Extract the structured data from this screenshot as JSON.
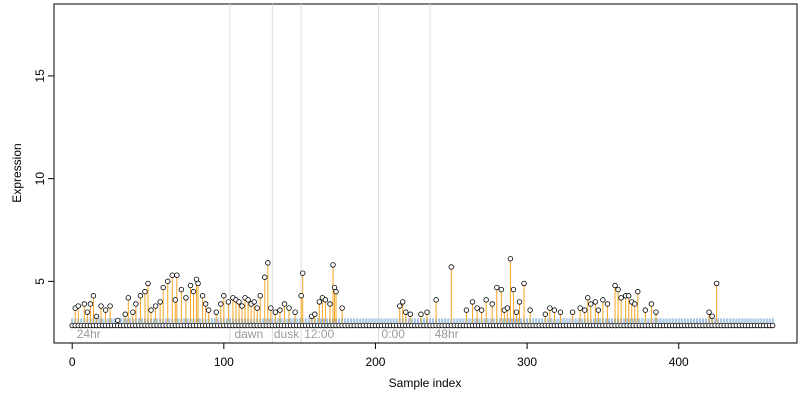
{
  "chart_data": {
    "type": "scatter",
    "title": "",
    "xlabel": "Sample index",
    "ylabel": "Expression",
    "xlim": [
      -12,
      478
    ],
    "ylim": [
      2.0,
      18.5
    ],
    "x_ticks": [
      0,
      100,
      200,
      300,
      400
    ],
    "y_ticks": [
      5,
      10,
      15
    ],
    "baseline": 3.0,
    "grid": false,
    "legend": "none",
    "colors": {
      "stem": "#f5a623",
      "baseline_bar": "#b9d3ee",
      "baseline_bar_edge": "#6f9fd0",
      "point_fill": "#ffffff",
      "point_edge": "#000000",
      "phase_line": "#dddddd",
      "phase_text": "#9a9a9a"
    },
    "phase_boundaries": [
      104,
      132,
      151,
      202,
      236
    ],
    "phase_labels": [
      {
        "x": 3,
        "label": "24hr"
      },
      {
        "x": 107,
        "label": "dawn"
      },
      {
        "x": 133,
        "label": "dusk"
      },
      {
        "x": 153,
        "label": "12:00"
      },
      {
        "x": 204,
        "label": "0:00"
      },
      {
        "x": 239,
        "label": "48hr"
      }
    ],
    "series": [
      {
        "values": [
          {
            "x": 2,
            "y": 3.7
          },
          {
            "x": 4,
            "y": 3.8
          },
          {
            "x": 8,
            "y": 3.9
          },
          {
            "x": 10,
            "y": 3.5
          },
          {
            "x": 12,
            "y": 3.9
          },
          {
            "x": 14,
            "y": 4.3
          },
          {
            "x": 16,
            "y": 3.3
          },
          {
            "x": 19,
            "y": 3.8
          },
          {
            "x": 22,
            "y": 3.6
          },
          {
            "x": 25,
            "y": 3.8
          },
          {
            "x": 30,
            "y": 3.1
          },
          {
            "x": 35,
            "y": 3.4
          },
          {
            "x": 37,
            "y": 4.2
          },
          {
            "x": 40,
            "y": 3.5
          },
          {
            "x": 42,
            "y": 3.9
          },
          {
            "x": 45,
            "y": 4.3
          },
          {
            "x": 48,
            "y": 4.5
          },
          {
            "x": 50,
            "y": 4.9
          },
          {
            "x": 52,
            "y": 3.6
          },
          {
            "x": 55,
            "y": 3.8
          },
          {
            "x": 58,
            "y": 4.0
          },
          {
            "x": 60,
            "y": 4.7
          },
          {
            "x": 63,
            "y": 5.0
          },
          {
            "x": 66,
            "y": 5.3
          },
          {
            "x": 68,
            "y": 4.1
          },
          {
            "x": 69,
            "y": 5.3
          },
          {
            "x": 72,
            "y": 4.6
          },
          {
            "x": 75,
            "y": 4.2
          },
          {
            "x": 78,
            "y": 4.8
          },
          {
            "x": 80,
            "y": 4.5
          },
          {
            "x": 82,
            "y": 5.1
          },
          {
            "x": 83,
            "y": 4.9
          },
          {
            "x": 86,
            "y": 4.3
          },
          {
            "x": 88,
            "y": 3.9
          },
          {
            "x": 90,
            "y": 3.6
          },
          {
            "x": 95,
            "y": 3.5
          },
          {
            "x": 98,
            "y": 3.9
          },
          {
            "x": 100,
            "y": 4.3
          },
          {
            "x": 103,
            "y": 4.0
          },
          {
            "x": 106,
            "y": 4.2
          },
          {
            "x": 108,
            "y": 4.1
          },
          {
            "x": 110,
            "y": 4.0
          },
          {
            "x": 112,
            "y": 3.8
          },
          {
            "x": 114,
            "y": 4.2
          },
          {
            "x": 116,
            "y": 4.1
          },
          {
            "x": 118,
            "y": 3.9
          },
          {
            "x": 120,
            "y": 4.0
          },
          {
            "x": 122,
            "y": 3.7
          },
          {
            "x": 124,
            "y": 4.3
          },
          {
            "x": 127,
            "y": 5.2
          },
          {
            "x": 129,
            "y": 5.9
          },
          {
            "x": 131,
            "y": 3.7
          },
          {
            "x": 134,
            "y": 3.5
          },
          {
            "x": 137,
            "y": 3.6
          },
          {
            "x": 140,
            "y": 3.9
          },
          {
            "x": 143,
            "y": 3.7
          },
          {
            "x": 147,
            "y": 3.5
          },
          {
            "x": 151,
            "y": 4.3
          },
          {
            "x": 152,
            "y": 5.4
          },
          {
            "x": 158,
            "y": 3.3
          },
          {
            "x": 160,
            "y": 3.4
          },
          {
            "x": 163,
            "y": 4.0
          },
          {
            "x": 165,
            "y": 4.2
          },
          {
            "x": 167,
            "y": 4.1
          },
          {
            "x": 170,
            "y": 3.9
          },
          {
            "x": 172,
            "y": 5.8
          },
          {
            "x": 173,
            "y": 4.7
          },
          {
            "x": 174,
            "y": 4.5
          },
          {
            "x": 178,
            "y": 3.7
          },
          {
            "x": 216,
            "y": 3.8
          },
          {
            "x": 218,
            "y": 4.0
          },
          {
            "x": 220,
            "y": 3.5
          },
          {
            "x": 223,
            "y": 3.4
          },
          {
            "x": 230,
            "y": 3.4
          },
          {
            "x": 234,
            "y": 3.5
          },
          {
            "x": 240,
            "y": 4.1
          },
          {
            "x": 250,
            "y": 5.7
          },
          {
            "x": 260,
            "y": 3.6
          },
          {
            "x": 264,
            "y": 4.0
          },
          {
            "x": 267,
            "y": 3.7
          },
          {
            "x": 270,
            "y": 3.6
          },
          {
            "x": 273,
            "y": 4.1
          },
          {
            "x": 277,
            "y": 3.9
          },
          {
            "x": 280,
            "y": 4.7
          },
          {
            "x": 283,
            "y": 4.6
          },
          {
            "x": 285,
            "y": 3.6
          },
          {
            "x": 287,
            "y": 3.7
          },
          {
            "x": 289,
            "y": 6.1
          },
          {
            "x": 291,
            "y": 4.6
          },
          {
            "x": 293,
            "y": 3.5
          },
          {
            "x": 295,
            "y": 4.0
          },
          {
            "x": 298,
            "y": 4.9
          },
          {
            "x": 302,
            "y": 3.6
          },
          {
            "x": 312,
            "y": 3.4
          },
          {
            "x": 315,
            "y": 3.7
          },
          {
            "x": 318,
            "y": 3.6
          },
          {
            "x": 322,
            "y": 3.5
          },
          {
            "x": 330,
            "y": 3.5
          },
          {
            "x": 335,
            "y": 3.7
          },
          {
            "x": 338,
            "y": 3.6
          },
          {
            "x": 340,
            "y": 4.2
          },
          {
            "x": 342,
            "y": 3.9
          },
          {
            "x": 345,
            "y": 4.0
          },
          {
            "x": 347,
            "y": 3.6
          },
          {
            "x": 350,
            "y": 4.1
          },
          {
            "x": 353,
            "y": 3.9
          },
          {
            "x": 358,
            "y": 4.8
          },
          {
            "x": 360,
            "y": 4.6
          },
          {
            "x": 362,
            "y": 4.2
          },
          {
            "x": 365,
            "y": 4.3
          },
          {
            "x": 367,
            "y": 4.3
          },
          {
            "x": 369,
            "y": 4.0
          },
          {
            "x": 371,
            "y": 3.9
          },
          {
            "x": 373,
            "y": 4.5
          },
          {
            "x": 378,
            "y": 3.6
          },
          {
            "x": 382,
            "y": 3.9
          },
          {
            "x": 385,
            "y": 3.5
          },
          {
            "x": 420,
            "y": 3.5
          },
          {
            "x": 422,
            "y": 3.3
          },
          {
            "x": 425,
            "y": 4.9
          }
        ]
      }
    ]
  }
}
